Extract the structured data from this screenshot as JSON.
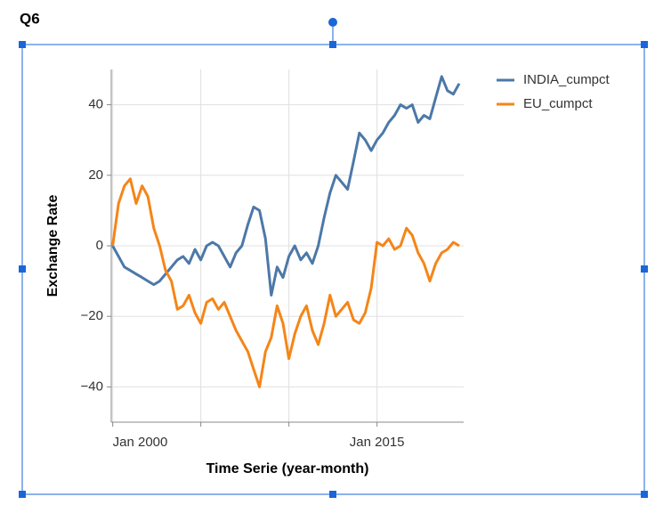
{
  "label": "Q6",
  "chart_data": {
    "type": "line",
    "xlabel": "Time Serie (year-month)",
    "ylabel": "Exchange Rate",
    "x": [
      "2000-01",
      "2000-05",
      "2000-09",
      "2001-01",
      "2001-05",
      "2001-09",
      "2002-01",
      "2002-05",
      "2002-09",
      "2003-01",
      "2003-05",
      "2003-09",
      "2004-01",
      "2004-05",
      "2004-09",
      "2005-01",
      "2005-05",
      "2005-09",
      "2006-01",
      "2006-05",
      "2006-09",
      "2007-01",
      "2007-05",
      "2007-09",
      "2008-01",
      "2008-05",
      "2008-09",
      "2009-01",
      "2009-05",
      "2009-09",
      "2010-01",
      "2010-05",
      "2010-09",
      "2011-01",
      "2011-05",
      "2011-09",
      "2012-01",
      "2012-05",
      "2012-09",
      "2013-01",
      "2013-05",
      "2013-09",
      "2014-01",
      "2014-05",
      "2014-09",
      "2015-01",
      "2015-05",
      "2015-09",
      "2016-01",
      "2016-05",
      "2016-09",
      "2017-01",
      "2017-05",
      "2017-09",
      "2018-01",
      "2018-05",
      "2018-09",
      "2019-01",
      "2019-05",
      "2019-09"
    ],
    "series": [
      {
        "name": "INDIA_cumpct",
        "color": "#4c78a8",
        "values": [
          0,
          -3,
          -6,
          -7,
          -8,
          -9,
          -10,
          -11,
          -10,
          -8,
          -6,
          -4,
          -3,
          -5,
          -1,
          -4,
          0,
          1,
          0,
          -3,
          -6,
          -2,
          0,
          6,
          11,
          10,
          2,
          -14,
          -6,
          -9,
          -3,
          0,
          -4,
          -2,
          -5,
          0,
          8,
          15,
          20,
          18,
          16,
          24,
          32,
          30,
          27,
          30,
          32,
          35,
          37,
          40,
          39,
          40,
          35,
          37,
          36,
          42,
          48,
          44,
          43,
          46
        ]
      },
      {
        "name": "EU_cumpct",
        "color": "#f58518",
        "values": [
          0,
          12,
          17,
          19,
          12,
          17,
          14,
          5,
          0,
          -7,
          -10,
          -18,
          -17,
          -14,
          -19,
          -22,
          -16,
          -15,
          -18,
          -16,
          -20,
          -24,
          -27,
          -30,
          -35,
          -40,
          -30,
          -26,
          -17,
          -22,
          -32,
          -25,
          -20,
          -17,
          -24,
          -28,
          -22,
          -14,
          -20,
          -18,
          -16,
          -21,
          -22,
          -19,
          -12,
          1,
          0,
          2,
          -1,
          0,
          5,
          3,
          -2,
          -5,
          -10,
          -5,
          -2,
          -1,
          1,
          0
        ]
      }
    ],
    "xlim": [
      "1999-12",
      "2019-12"
    ],
    "xticks": [
      {
        "value": "2000-01",
        "label": "Jan 2000"
      },
      {
        "value": "2005-01",
        "label": null
      },
      {
        "value": "2010-01",
        "label": null
      },
      {
        "value": "2015-01",
        "label": "Jan 2015"
      }
    ],
    "ylim": [
      -50,
      50
    ],
    "yticks": [
      {
        "value": -40,
        "label": "−40"
      },
      {
        "value": -20,
        "label": "−20"
      },
      0,
      20,
      40
    ],
    "grid": true,
    "legend": "right"
  }
}
